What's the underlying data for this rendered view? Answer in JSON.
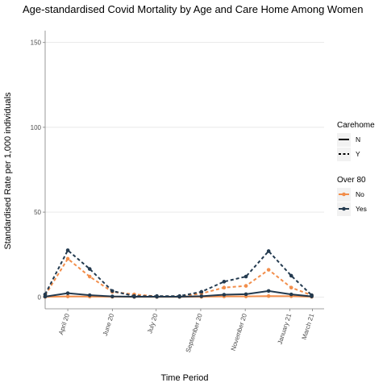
{
  "chart_data": {
    "type": "line",
    "title": "Age-standardised Covid Mortality by Age and Care Home Among Women",
    "xlabel": "Time Period",
    "ylabel": "Standardised Rate per 1,000 individuals",
    "ylim": [
      -7,
      157
    ],
    "yticks": [
      0,
      50,
      100,
      150
    ],
    "xlim": [
      "2020-03-01",
      "2021-03-18"
    ],
    "xticks": [
      {
        "date": "2020-04-01",
        "label": "April 20"
      },
      {
        "date": "2020-06-01",
        "label": "June 20"
      },
      {
        "date": "2020-07-31",
        "label": "July 20"
      },
      {
        "date": "2020-09-30",
        "label": "September 20"
      },
      {
        "date": "2020-11-30",
        "label": "November 20"
      },
      {
        "date": "2021-01-30",
        "label": "January 21"
      },
      {
        "date": "2021-03-02",
        "label": "March 21"
      }
    ],
    "x": [
      "2020-03-01",
      "2020-04-01",
      "2020-05-01",
      "2020-06-01",
      "2020-07-01",
      "2020-08-01",
      "2020-09-01",
      "2020-10-01",
      "2020-11-01",
      "2020-12-01",
      "2021-01-01",
      "2021-02-01",
      "2021-03-01"
    ],
    "series": [
      {
        "name": "No",
        "carehome": "Y",
        "over80": "No",
        "values": [
          1.0,
          22.5,
          12.0,
          3.0,
          1.5,
          0.3,
          0.3,
          2.0,
          5.5,
          6.5,
          16.0,
          5.5,
          1.0
        ]
      },
      {
        "name": "Yes",
        "carehome": "Y",
        "over80": "Yes",
        "values": [
          1.5,
          27.5,
          16.5,
          3.5,
          0.5,
          0.5,
          0.5,
          3.0,
          9.0,
          12.0,
          27.0,
          12.5,
          1.0
        ]
      },
      {
        "name": "No",
        "carehome": "N",
        "over80": "No",
        "values": [
          0.0,
          0.3,
          0.2,
          0.1,
          0.0,
          0.0,
          0.0,
          0.1,
          0.3,
          0.3,
          0.5,
          0.4,
          0.1
        ]
      },
      {
        "name": "Yes",
        "carehome": "N",
        "over80": "Yes",
        "values": [
          0.2,
          2.2,
          1.0,
          0.3,
          0.1,
          0.1,
          0.1,
          0.4,
          1.3,
          1.6,
          3.5,
          1.5,
          0.3
        ]
      }
    ],
    "grid": true,
    "legend": {
      "placement": "right",
      "groups": [
        {
          "title": "Carehome",
          "entries": [
            {
              "label": "N",
              "linetype": "solid"
            },
            {
              "label": "Y",
              "linetype": "dashed"
            }
          ]
        },
        {
          "title": "Over 80",
          "entries": [
            {
              "label": "No",
              "color": "#F28E4B"
            },
            {
              "label": "Yes",
              "color": "#233A4F"
            }
          ]
        }
      ]
    }
  }
}
